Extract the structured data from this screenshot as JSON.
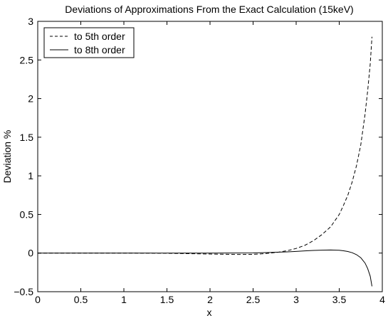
{
  "chart_data": {
    "type": "line",
    "title": "Deviations of Approximations From the Exact Calculation (15keV)",
    "xlabel": "x",
    "ylabel": "Deviation %",
    "xlim": [
      0,
      4
    ],
    "ylim": [
      -0.5,
      3
    ],
    "xticks": [
      0,
      0.5,
      1,
      1.5,
      2,
      2.5,
      3,
      3.5,
      4
    ],
    "xtick_labels": [
      "0",
      "0.5",
      "1",
      "1.5",
      "2",
      "2.5",
      "3",
      "3.5",
      "4"
    ],
    "yticks": [
      -0.5,
      0,
      0.5,
      1,
      1.5,
      2,
      2.5,
      3
    ],
    "ytick_labels": [
      "−0.5",
      "0",
      "0.5",
      "1",
      "1.5",
      "2",
      "2.5",
      "3"
    ],
    "grid": false,
    "legend_position": "top-left",
    "series": [
      {
        "name": "to 5th order",
        "style": "dashed",
        "color": "#000000",
        "x": [
          0,
          0.5,
          1.0,
          1.5,
          2.0,
          2.3,
          2.5,
          2.6,
          2.7,
          2.8,
          2.9,
          3.0,
          3.1,
          3.2,
          3.3,
          3.4,
          3.5,
          3.55,
          3.6,
          3.65,
          3.7,
          3.75,
          3.8,
          3.83,
          3.86,
          3.88
        ],
        "y": [
          0,
          0,
          0,
          -0.003,
          -0.012,
          -0.018,
          -0.016,
          -0.01,
          0,
          0.012,
          0.032,
          0.06,
          0.1,
          0.16,
          0.24,
          0.34,
          0.5,
          0.62,
          0.75,
          0.92,
          1.13,
          1.4,
          1.8,
          2.1,
          2.45,
          2.8
        ]
      },
      {
        "name": "to 8th order",
        "style": "solid",
        "color": "#000000",
        "x": [
          0,
          0.5,
          1.0,
          1.5,
          2.0,
          2.5,
          2.7,
          2.9,
          3.0,
          3.1,
          3.2,
          3.3,
          3.4,
          3.5,
          3.55,
          3.6,
          3.65,
          3.7,
          3.75,
          3.8,
          3.83,
          3.86,
          3.88
        ],
        "y": [
          0,
          0,
          0,
          0,
          0,
          0.002,
          0.008,
          0.016,
          0.022,
          0.028,
          0.034,
          0.038,
          0.04,
          0.036,
          0.03,
          0.02,
          0.005,
          -0.02,
          -0.06,
          -0.13,
          -0.2,
          -0.3,
          -0.43
        ]
      }
    ]
  }
}
